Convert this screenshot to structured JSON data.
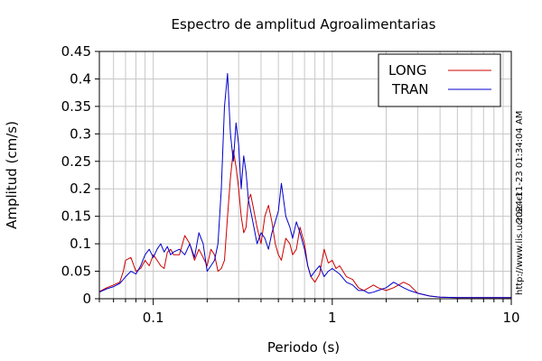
{
  "chart_data": {
    "type": "line",
    "title": "Espectro de amplitud Agroalimentarias",
    "xlabel": "Periodo (s)",
    "ylabel": "Amplitud (cm/s)",
    "xscale": "log",
    "xlim": [
      0.05,
      10
    ],
    "ylim": [
      0,
      0.45
    ],
    "grid": true,
    "legend_position": "top-right",
    "x_tick_labels": [
      {
        "value": 0.1,
        "label": "0.1"
      },
      {
        "value": 1,
        "label": "1"
      },
      {
        "value": 10,
        "label": "10"
      }
    ],
    "y_tick_labels": [
      {
        "value": 0,
        "label": "0"
      },
      {
        "value": 0.05,
        "label": "0.05"
      },
      {
        "value": 0.1,
        "label": "0.1"
      },
      {
        "value": 0.15,
        "label": "0.15"
      },
      {
        "value": 0.2,
        "label": "0.2"
      },
      {
        "value": 0.25,
        "label": "0.25"
      },
      {
        "value": 0.3,
        "label": "0.3"
      },
      {
        "value": 0.35,
        "label": "0.35"
      },
      {
        "value": 0.4,
        "label": "0.4"
      },
      {
        "value": 0.45,
        "label": "0.45"
      }
    ],
    "timestamp": "2024-11-23 01:34:04 AM",
    "source_url": "http://www.lis.ucr.ac.cr",
    "series": [
      {
        "name": "LONG",
        "color": "#cc0000",
        "x": [
          0.05,
          0.055,
          0.06,
          0.065,
          0.068,
          0.07,
          0.075,
          0.08,
          0.085,
          0.09,
          0.095,
          0.1,
          0.105,
          0.11,
          0.115,
          0.12,
          0.125,
          0.13,
          0.14,
          0.15,
          0.16,
          0.17,
          0.18,
          0.19,
          0.2,
          0.21,
          0.22,
          0.23,
          0.24,
          0.25,
          0.26,
          0.27,
          0.28,
          0.29,
          0.3,
          0.31,
          0.32,
          0.33,
          0.34,
          0.35,
          0.36,
          0.38,
          0.4,
          0.42,
          0.44,
          0.46,
          0.48,
          0.5,
          0.52,
          0.55,
          0.58,
          0.6,
          0.63,
          0.66,
          0.7,
          0.73,
          0.76,
          0.8,
          0.85,
          0.9,
          0.95,
          1.0,
          1.05,
          1.1,
          1.2,
          1.3,
          1.4,
          1.5,
          1.6,
          1.7,
          1.8,
          2.0,
          2.2,
          2.5,
          2.7,
          3.0,
          3.5,
          4.0,
          5.0,
          6.0,
          7.0,
          8.0,
          10.0
        ],
        "y": [
          0.013,
          0.02,
          0.025,
          0.03,
          0.05,
          0.07,
          0.075,
          0.05,
          0.055,
          0.07,
          0.06,
          0.08,
          0.07,
          0.06,
          0.055,
          0.085,
          0.09,
          0.08,
          0.08,
          0.115,
          0.1,
          0.07,
          0.09,
          0.075,
          0.06,
          0.09,
          0.08,
          0.05,
          0.055,
          0.07,
          0.15,
          0.22,
          0.27,
          0.24,
          0.2,
          0.15,
          0.12,
          0.13,
          0.18,
          0.19,
          0.17,
          0.13,
          0.1,
          0.15,
          0.17,
          0.14,
          0.1,
          0.08,
          0.07,
          0.11,
          0.1,
          0.08,
          0.09,
          0.13,
          0.1,
          0.06,
          0.04,
          0.03,
          0.045,
          0.09,
          0.065,
          0.07,
          0.055,
          0.06,
          0.04,
          0.035,
          0.02,
          0.015,
          0.02,
          0.025,
          0.02,
          0.015,
          0.02,
          0.03,
          0.025,
          0.01,
          0.005,
          0.003,
          0.002,
          0.002,
          0.002,
          0.002,
          0.002
        ]
      },
      {
        "name": "TRAN",
        "color": "#0000cc",
        "x": [
          0.05,
          0.055,
          0.06,
          0.065,
          0.068,
          0.07,
          0.075,
          0.08,
          0.085,
          0.09,
          0.095,
          0.1,
          0.105,
          0.11,
          0.115,
          0.12,
          0.125,
          0.13,
          0.14,
          0.15,
          0.16,
          0.17,
          0.18,
          0.19,
          0.2,
          0.21,
          0.22,
          0.23,
          0.24,
          0.25,
          0.26,
          0.27,
          0.28,
          0.29,
          0.3,
          0.31,
          0.32,
          0.33,
          0.34,
          0.35,
          0.36,
          0.38,
          0.4,
          0.42,
          0.44,
          0.46,
          0.48,
          0.5,
          0.52,
          0.55,
          0.58,
          0.6,
          0.63,
          0.66,
          0.7,
          0.73,
          0.76,
          0.8,
          0.85,
          0.9,
          0.95,
          1.0,
          1.05,
          1.1,
          1.2,
          1.3,
          1.4,
          1.5,
          1.6,
          1.7,
          1.8,
          2.0,
          2.2,
          2.5,
          2.7,
          3.0,
          3.5,
          4.0,
          5.0,
          6.0,
          7.0,
          8.0,
          10.0
        ],
        "y": [
          0.012,
          0.018,
          0.022,
          0.028,
          0.035,
          0.04,
          0.05,
          0.045,
          0.06,
          0.08,
          0.09,
          0.075,
          0.09,
          0.1,
          0.085,
          0.095,
          0.08,
          0.085,
          0.09,
          0.08,
          0.1,
          0.075,
          0.12,
          0.1,
          0.05,
          0.06,
          0.07,
          0.1,
          0.2,
          0.35,
          0.41,
          0.3,
          0.25,
          0.32,
          0.28,
          0.2,
          0.26,
          0.23,
          0.18,
          0.16,
          0.14,
          0.1,
          0.12,
          0.11,
          0.09,
          0.12,
          0.14,
          0.16,
          0.21,
          0.15,
          0.13,
          0.11,
          0.14,
          0.12,
          0.09,
          0.06,
          0.04,
          0.05,
          0.06,
          0.04,
          0.05,
          0.055,
          0.05,
          0.045,
          0.03,
          0.025,
          0.015,
          0.015,
          0.01,
          0.012,
          0.015,
          0.02,
          0.03,
          0.02,
          0.015,
          0.01,
          0.005,
          0.003,
          0.002,
          0.002,
          0.002,
          0.002,
          0.002
        ]
      }
    ]
  }
}
